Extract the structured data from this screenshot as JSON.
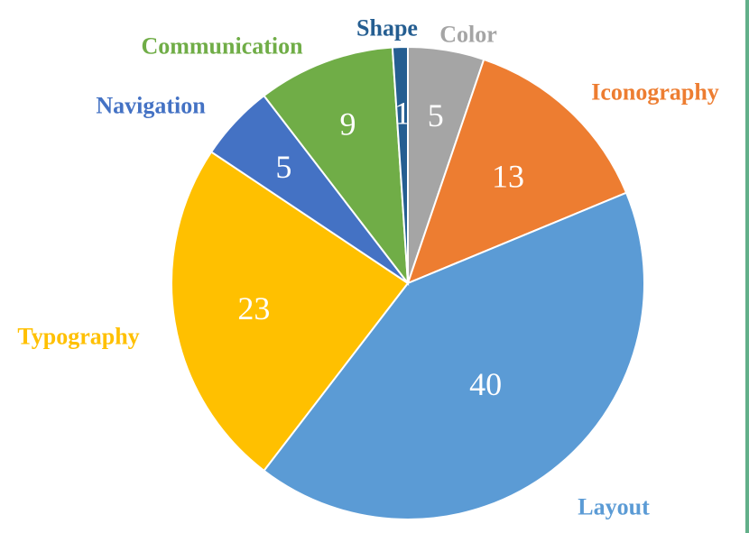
{
  "chart_data": {
    "type": "pie",
    "title": "",
    "slices": [
      {
        "label": "Color",
        "value": 5,
        "color": "#A5A5A5"
      },
      {
        "label": "Iconography",
        "value": 13,
        "color": "#ED7D31"
      },
      {
        "label": "Layout",
        "value": 40,
        "color": "#5B9BD5"
      },
      {
        "label": "Typography",
        "value": 23,
        "color": "#FFC000"
      },
      {
        "label": "Navigation",
        "value": 5,
        "color": "#4472C4"
      },
      {
        "label": "Communication",
        "value": 9,
        "color": "#70AD47"
      },
      {
        "label": "Shape",
        "value": 1,
        "color": "#255E91"
      }
    ],
    "label_colors": {
      "Color": "#A5A5A5",
      "Iconography": "#ED7D31",
      "Layout": "#5B9BD5",
      "Typography": "#FFC000",
      "Navigation": "#4472C4",
      "Communication": "#70AD47",
      "Shape": "#255E91"
    },
    "start_angle": "12 o'clock",
    "direction": "clockwise",
    "legend": "none",
    "data_labels": "inside"
  }
}
